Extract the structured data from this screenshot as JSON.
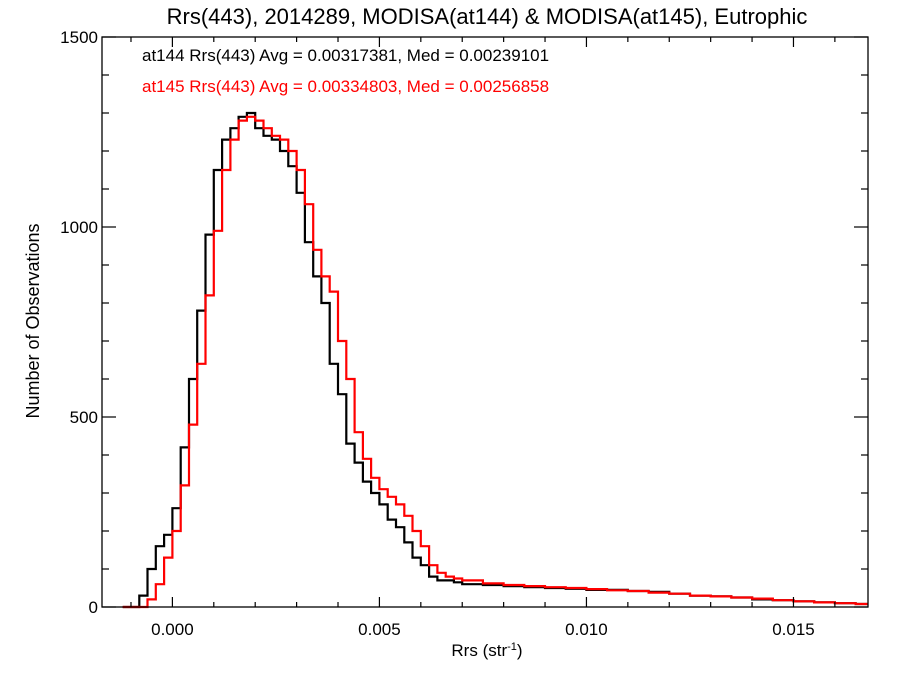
{
  "chart_data": {
    "type": "line",
    "style": "step histogram",
    "title": "Rrs(443), 2014289, MODISA(at144) & MODISA(at145), Eutrophic",
    "xlabel_main": "Rrs (str",
    "xlabel_sup": "-1",
    "xlabel_close": ")",
    "ylabel": "Number of Observations",
    "xlim": [
      -0.0017,
      0.0168
    ],
    "ylim": [
      0,
      1500
    ],
    "x_ticks": [
      0.0,
      0.005,
      0.01,
      0.015
    ],
    "x_tick_labels": [
      "0.000",
      "0.005",
      "0.010",
      "0.015"
    ],
    "y_ticks": [
      0,
      500,
      1000,
      1500
    ],
    "y_tick_labels": [
      "0",
      "500",
      "1000",
      "1500"
    ],
    "grid": false,
    "annotations": [
      {
        "text": "at144 Rrs(443) Avg = 0.00317381, Med = 0.00239101",
        "color": "#000000"
      },
      {
        "text": "at145 Rrs(443) Avg = 0.00334803, Med = 0.00256858",
        "color": "#ff0000"
      }
    ],
    "series": [
      {
        "color": "#000000",
        "x": [
          -0.0012,
          -0.001,
          -0.0008,
          -0.0006,
          -0.0004,
          -0.0002,
          0.0,
          0.0002,
          0.0004,
          0.0006,
          0.0008,
          0.001,
          0.0012,
          0.0014,
          0.0016,
          0.0018,
          0.002,
          0.0022,
          0.0024,
          0.0026,
          0.0028,
          0.003,
          0.0032,
          0.0034,
          0.0036,
          0.0038,
          0.004,
          0.0042,
          0.0044,
          0.0046,
          0.0048,
          0.005,
          0.0052,
          0.0054,
          0.0056,
          0.0058,
          0.006,
          0.0062,
          0.0064,
          0.0066,
          0.0068,
          0.007,
          0.0075,
          0.008,
          0.0085,
          0.009,
          0.0095,
          0.01,
          0.0105,
          0.011,
          0.0115,
          0.012,
          0.0125,
          0.013,
          0.0135,
          0.014,
          0.0145,
          0.015,
          0.0155,
          0.016,
          0.0165,
          0.0168
        ],
        "y": [
          0,
          0,
          30,
          100,
          160,
          190,
          260,
          420,
          600,
          780,
          980,
          1150,
          1230,
          1260,
          1290,
          1300,
          1260,
          1240,
          1230,
          1200,
          1160,
          1090,
          960,
          870,
          800,
          640,
          560,
          430,
          380,
          330,
          300,
          270,
          230,
          210,
          170,
          130,
          110,
          80,
          70,
          70,
          65,
          60,
          58,
          55,
          52,
          50,
          48,
          45,
          45,
          42,
          40,
          35,
          30,
          28,
          25,
          20,
          18,
          15,
          12,
          10,
          8,
          8
        ]
      },
      {
        "color": "#ff0000",
        "x": [
          -0.0012,
          -0.001,
          -0.0008,
          -0.0006,
          -0.0004,
          -0.0002,
          0.0,
          0.0002,
          0.0004,
          0.0006,
          0.0008,
          0.001,
          0.0012,
          0.0014,
          0.0016,
          0.0018,
          0.002,
          0.0022,
          0.0024,
          0.0026,
          0.0028,
          0.003,
          0.0032,
          0.0034,
          0.0036,
          0.0038,
          0.004,
          0.0042,
          0.0044,
          0.0046,
          0.0048,
          0.005,
          0.0052,
          0.0054,
          0.0056,
          0.0058,
          0.006,
          0.0062,
          0.0064,
          0.0066,
          0.0068,
          0.007,
          0.0075,
          0.008,
          0.0085,
          0.009,
          0.0095,
          0.01,
          0.0105,
          0.011,
          0.0115,
          0.012,
          0.0125,
          0.013,
          0.0135,
          0.014,
          0.0145,
          0.015,
          0.0155,
          0.016,
          0.0165,
          0.0168
        ],
        "y": [
          0,
          0,
          0,
          20,
          60,
          130,
          200,
          320,
          480,
          640,
          820,
          990,
          1150,
          1230,
          1280,
          1290,
          1280,
          1260,
          1240,
          1230,
          1200,
          1150,
          1060,
          940,
          870,
          830,
          700,
          600,
          460,
          390,
          340,
          310,
          290,
          270,
          240,
          200,
          160,
          110,
          90,
          80,
          75,
          70,
          62,
          58,
          55,
          52,
          50,
          47,
          44,
          42,
          38,
          35,
          30,
          28,
          25,
          22,
          18,
          15,
          12,
          10,
          8,
          8
        ]
      }
    ]
  }
}
